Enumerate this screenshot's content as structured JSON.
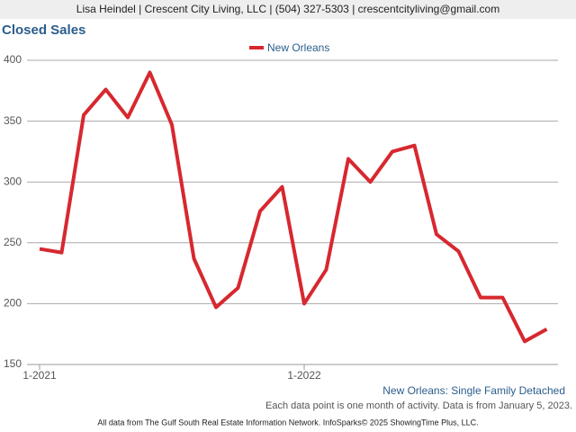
{
  "header": {
    "contact": "Lisa Heindel | Crescent City Living, LLC | (504) 327-5303 | crescentcityliving@gmail.com"
  },
  "chart_data": {
    "type": "line",
    "title": "Closed Sales",
    "categories": [
      "1-2021",
      null,
      null,
      null,
      null,
      null,
      null,
      null,
      null,
      null,
      null,
      null,
      "1-2022",
      null,
      null,
      null,
      null,
      null,
      null,
      null,
      null,
      null,
      null,
      null
    ],
    "series": [
      {
        "name": "New Orleans",
        "color": "#d7282f",
        "values": [
          245,
          242,
          355,
          376,
          353,
          390,
          347,
          237,
          197,
          213,
          276,
          296,
          200,
          228,
          319,
          300,
          325,
          330,
          257,
          243,
          205,
          205,
          169,
          179
        ]
      }
    ],
    "ylim": [
      150,
      400
    ],
    "yticks": [
      150,
      200,
      250,
      300,
      350,
      400
    ],
    "grid": true,
    "subtitle": "New Orleans: Single Family Detached",
    "note": "Each data point is one month of activity. Data is from January 5, 2023."
  },
  "footer": {
    "source": "All data from The Gulf South Real Estate Information Network. InfoSparks© 2025 ShowingTime Plus, LLC."
  }
}
